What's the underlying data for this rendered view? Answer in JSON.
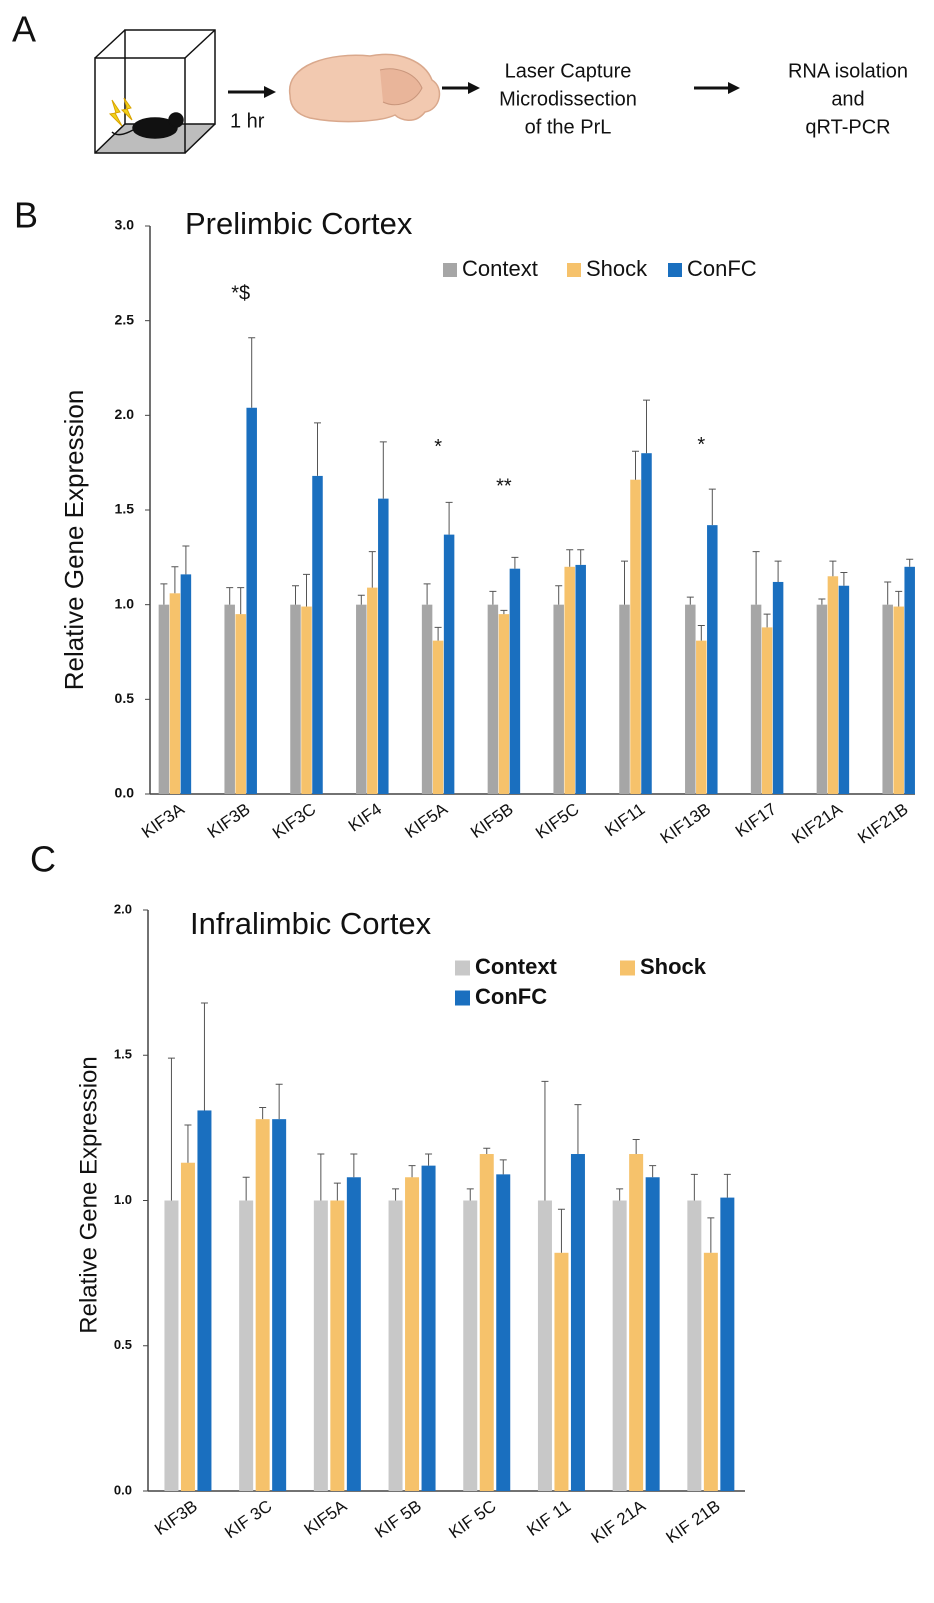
{
  "figure": {
    "panel_labels": [
      "A",
      "B",
      "C"
    ],
    "workflow": {
      "duration": "1 hr",
      "step1": [
        "Laser Capture",
        "Microdissection",
        "of the PrL"
      ],
      "step2": [
        "RNA isolation",
        "and",
        "qRT-PCR"
      ]
    }
  },
  "chart_data": [
    {
      "type": "bar",
      "title": "Prelimbic Cortex",
      "y_label": "Relative Gene Expression",
      "categories": [
        "KIF3A",
        "KIF3B",
        "KIF3C",
        "KIF4",
        "KIF5A",
        "KIF5B",
        "KIF5C",
        "KIF11",
        "KIF13B",
        "KIF17",
        "KIF21A",
        "KIF21B"
      ],
      "series": [
        {
          "name": "Context",
          "color": "#a6a6a6",
          "values": [
            1,
            1,
            1,
            1,
            1,
            1,
            1,
            1,
            1,
            1,
            1,
            1
          ],
          "errors": [
            0.11,
            0.09,
            0.1,
            0.05,
            0.11,
            0.07,
            0.1,
            0.23,
            0.04,
            0.28,
            0.03,
            0.12
          ]
        },
        {
          "name": "Shock",
          "color": "#f6c26b",
          "values": [
            1.06,
            0.95,
            0.99,
            1.09,
            0.81,
            0.95,
            1.2,
            1.66,
            0.81,
            0.88,
            1.15,
            0.99
          ],
          "errors": [
            0.14,
            0.14,
            0.17,
            0.19,
            0.07,
            0.02,
            0.09,
            0.15,
            0.08,
            0.07,
            0.08,
            0.08
          ]
        },
        {
          "name": "ConFC",
          "color": "#1a6fbf",
          "values": [
            1.16,
            2.04,
            1.68,
            1.56,
            1.37,
            1.19,
            1.21,
            1.8,
            1.42,
            1.12,
            1.1,
            1.2
          ],
          "errors": [
            0.15,
            0.37,
            0.28,
            0.3,
            0.17,
            0.06,
            0.08,
            0.28,
            0.19,
            0.11,
            0.07,
            0.04
          ]
        }
      ],
      "annotations": [
        {
          "text": "*$",
          "category": "KIF3B",
          "y": 2.64
        },
        {
          "text": "*",
          "category": "KIF5A",
          "y": 1.83
        },
        {
          "text": "**",
          "category": "KIF5B",
          "y": 1.62
        },
        {
          "text": "*",
          "category": "KIF13B",
          "y": 1.84
        }
      ],
      "ylim": [
        0,
        3
      ],
      "yticks": [
        {
          "value": 0,
          "label": "0.0"
        },
        0.5,
        {
          "value": 1,
          "label": "1.0"
        },
        1.5,
        {
          "value": 2,
          "label": "2.0"
        },
        2.5,
        {
          "value": 3,
          "label": "3.0"
        }
      ],
      "grid": false,
      "legend": "top-right"
    },
    {
      "type": "bar",
      "title": "Infralimbic Cortex",
      "y_label": "Relative Gene Expression",
      "categories": [
        "KIF3B",
        "KIF 3C",
        "KIF5A",
        "KIF 5B",
        "KIF 5C",
        "KIF 11",
        "KIF 21A",
        "KIF 21B"
      ],
      "series": [
        {
          "name": "Context",
          "color": "#c8c8c8",
          "values": [
            1,
            1,
            1,
            1,
            1,
            1,
            1,
            1
          ],
          "errors": [
            0.49,
            0.08,
            0.16,
            0.04,
            0.04,
            0.41,
            0.04,
            0.09
          ]
        },
        {
          "name": "Shock",
          "color": "#f6c26b",
          "values": [
            1.13,
            1.28,
            1.0,
            1.08,
            1.16,
            0.82,
            1.16,
            0.82
          ],
          "errors": [
            0.13,
            0.04,
            0.06,
            0.04,
            0.02,
            0.15,
            0.05,
            0.12
          ]
        },
        {
          "name": "ConFC",
          "color": "#1a6fbf",
          "values": [
            1.31,
            1.28,
            1.08,
            1.12,
            1.09,
            1.16,
            1.08,
            1.01
          ],
          "errors": [
            0.37,
            0.12,
            0.08,
            0.04,
            0.05,
            0.17,
            0.04,
            0.08
          ]
        }
      ],
      "ylim": [
        0,
        2
      ],
      "yticks": [
        {
          "value": 0,
          "label": "0.0"
        },
        0.5,
        {
          "value": 1,
          "label": "1.0"
        },
        1.5,
        {
          "value": 2,
          "label": "2.0"
        }
      ],
      "grid": false,
      "legend": "top-right"
    }
  ]
}
